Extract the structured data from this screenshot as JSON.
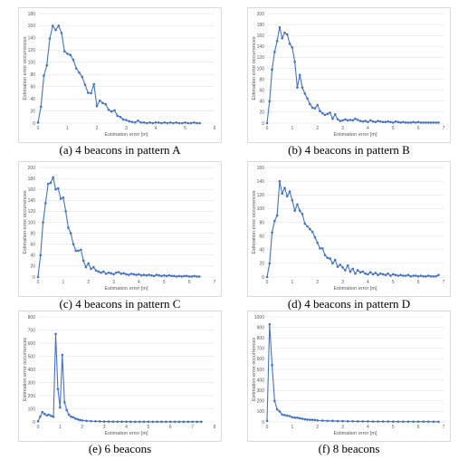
{
  "chart_data": [
    {
      "id": "a",
      "type": "line",
      "caption": "(a) 4 beacons in pattern A",
      "xlabel": "Estimation error [m]",
      "ylabel": "Estimation error occurrences",
      "xlim": [
        0,
        6
      ],
      "ylim": [
        0,
        180
      ],
      "xstep": 1,
      "ystep": 20,
      "series": [
        {
          "x": [
            0,
            0.1,
            0.2,
            0.3,
            0.4,
            0.5,
            0.6,
            0.7,
            0.8,
            0.9,
            1,
            1.1,
            1.2,
            1.3,
            1.4,
            1.5,
            1.6,
            1.7,
            1.8,
            1.9,
            2,
            2.1,
            2.2,
            2.3,
            2.4,
            2.5,
            2.6,
            2.7,
            2.8,
            2.9,
            3,
            3.1,
            3.2,
            3.3,
            3.4,
            3.5,
            3.6,
            3.7,
            3.8,
            3.9,
            4,
            4.1,
            4.2,
            4.3,
            4.4,
            4.5,
            4.6,
            4.7,
            4.8,
            4.9,
            5,
            5.1,
            5.2,
            5.3,
            5.4,
            5.5
          ],
          "y": [
            1,
            27,
            78,
            95,
            139,
            160,
            153,
            160,
            148,
            118,
            114,
            112,
            104,
            90,
            83,
            76,
            63,
            50,
            49,
            64,
            28,
            37,
            33,
            31,
            22,
            19,
            21,
            12,
            10,
            6,
            5,
            3,
            2,
            1,
            4,
            1,
            1,
            0,
            1,
            0,
            1,
            1,
            0,
            1,
            0,
            1,
            0,
            1,
            0,
            0,
            1,
            0,
            0,
            1,
            0,
            0
          ]
        }
      ]
    },
    {
      "id": "b",
      "type": "line",
      "caption": "(b) 4 beacons in pattern B",
      "xlabel": "Estimation error [m]",
      "ylabel": "Estimation error occurrences",
      "xlim": [
        0,
        7
      ],
      "ylim": [
        0,
        200
      ],
      "xstep": 1,
      "ystep": 20,
      "series": [
        {
          "x": [
            0,
            0.1,
            0.2,
            0.3,
            0.4,
            0.5,
            0.6,
            0.7,
            0.8,
            0.9,
            1,
            1.1,
            1.2,
            1.3,
            1.4,
            1.5,
            1.6,
            1.7,
            1.8,
            1.9,
            2,
            2.1,
            2.2,
            2.3,
            2.4,
            2.5,
            2.6,
            2.7,
            2.8,
            2.9,
            3,
            3.1,
            3.2,
            3.3,
            3.4,
            3.5,
            3.6,
            3.7,
            3.8,
            3.9,
            4,
            4.1,
            4.2,
            4.3,
            4.4,
            4.5,
            4.6,
            4.7,
            4.8,
            4.9,
            5,
            5.1,
            5.2,
            5.3,
            5.4,
            5.5,
            5.6,
            5.7,
            5.8,
            5.9,
            6,
            6.1,
            6.2,
            6.3,
            6.4,
            6.5,
            6.6,
            6.7,
            6.8
          ],
          "y": [
            0,
            40,
            98,
            130,
            150,
            175,
            155,
            165,
            162,
            145,
            138,
            112,
            65,
            88,
            65,
            54,
            45,
            35,
            28,
            27,
            33,
            22,
            18,
            15,
            17,
            19,
            8,
            16,
            7,
            4,
            5,
            7,
            5,
            6,
            5,
            8,
            6,
            4,
            3,
            4,
            2,
            5,
            3,
            2,
            4,
            3,
            2,
            2,
            3,
            2,
            1,
            3,
            2,
            1,
            2,
            1,
            1,
            1,
            2,
            1,
            2,
            1,
            1,
            1,
            1,
            1,
            1,
            1,
            1
          ]
        }
      ]
    },
    {
      "id": "c",
      "type": "line",
      "caption": "(c) 4 beacons in pattern C",
      "xlabel": "Estimation error [m]",
      "ylabel": "Estimation error occurrences",
      "xlim": [
        0,
        7
      ],
      "ylim": [
        0,
        200
      ],
      "xstep": 1,
      "ystep": 20,
      "series": [
        {
          "x": [
            0,
            0.1,
            0.2,
            0.3,
            0.4,
            0.5,
            0.6,
            0.7,
            0.8,
            0.9,
            1,
            1.1,
            1.2,
            1.3,
            1.4,
            1.5,
            1.6,
            1.7,
            1.8,
            1.9,
            2,
            2.1,
            2.2,
            2.3,
            2.4,
            2.5,
            2.6,
            2.7,
            2.8,
            2.9,
            3,
            3.1,
            3.2,
            3.3,
            3.4,
            3.5,
            3.6,
            3.7,
            3.8,
            3.9,
            4,
            4.1,
            4.2,
            4.3,
            4.4,
            4.5,
            4.6,
            4.7,
            4.8,
            4.9,
            5,
            5.1,
            5.2,
            5.3,
            5.4,
            5.5,
            5.6,
            5.7,
            5.8,
            5.9,
            6,
            6.1,
            6.2,
            6.3,
            6.4
          ],
          "y": [
            0,
            40,
            100,
            135,
            170,
            172,
            182,
            160,
            162,
            143,
            145,
            120,
            90,
            80,
            60,
            48,
            48,
            50,
            30,
            18,
            25,
            15,
            18,
            12,
            10,
            8,
            10,
            6,
            8,
            7,
            5,
            8,
            9,
            6,
            7,
            5,
            4,
            6,
            5,
            4,
            5,
            3,
            4,
            3,
            4,
            3,
            2,
            4,
            3,
            2,
            3,
            2,
            3,
            2,
            2,
            1,
            2,
            1,
            2,
            2,
            1,
            1,
            2,
            1,
            1
          ]
        }
      ]
    },
    {
      "id": "d",
      "type": "line",
      "caption": "(d) 4 beacons in pattern D",
      "xlabel": "Estimation error [m]",
      "ylabel": "Estimation error occurrences",
      "xlim": [
        0,
        7
      ],
      "ylim": [
        0,
        160
      ],
      "xstep": 1,
      "ystep": 20,
      "series": [
        {
          "x": [
            0,
            0.1,
            0.2,
            0.3,
            0.4,
            0.5,
            0.6,
            0.7,
            0.8,
            0.9,
            1,
            1.1,
            1.2,
            1.3,
            1.4,
            1.5,
            1.6,
            1.7,
            1.8,
            1.9,
            2,
            2.1,
            2.2,
            2.3,
            2.4,
            2.5,
            2.6,
            2.7,
            2.8,
            2.9,
            3,
            3.1,
            3.2,
            3.3,
            3.4,
            3.5,
            3.6,
            3.7,
            3.8,
            3.9,
            4,
            4.1,
            4.2,
            4.3,
            4.4,
            4.5,
            4.6,
            4.7,
            4.8,
            4.9,
            5,
            5.1,
            5.2,
            5.3,
            5.4,
            5.5,
            5.6,
            5.7,
            5.8,
            5.9,
            6,
            6.1,
            6.2,
            6.3,
            6.4,
            6.5,
            6.6,
            6.7,
            6.8
          ],
          "y": [
            0,
            20,
            65,
            82,
            90,
            140,
            122,
            130,
            118,
            125,
            112,
            97,
            106,
            97,
            92,
            78,
            74,
            70,
            66,
            58,
            50,
            42,
            42,
            32,
            28,
            27,
            20,
            25,
            15,
            18,
            14,
            10,
            17,
            8,
            12,
            5,
            10,
            7,
            8,
            5,
            4,
            7,
            4,
            6,
            3,
            5,
            4,
            3,
            5,
            2,
            4,
            3,
            2,
            3,
            2,
            2,
            3,
            1,
            2,
            2,
            1,
            2,
            1,
            1,
            2,
            1,
            1,
            1,
            3
          ]
        }
      ]
    },
    {
      "id": "e",
      "type": "line",
      "caption": "(e) 6 beacons",
      "xlabel": "Estimation error [m]",
      "ylabel": "Estimation error occurrences",
      "xlim": [
        0,
        8
      ],
      "ylim": [
        0,
        800
      ],
      "xstep": 1,
      "ystep": 100,
      "series": [
        {
          "x": [
            0,
            0.1,
            0.2,
            0.3,
            0.4,
            0.5,
            0.6,
            0.7,
            0.8,
            0.9,
            1,
            1.1,
            1.2,
            1.3,
            1.4,
            1.5,
            1.6,
            1.7,
            1.8,
            1.9,
            2,
            2.2,
            2.4,
            2.6,
            2.8,
            3,
            3.2,
            3.4,
            3.6,
            3.8,
            4,
            4.2,
            4.4,
            4.6,
            4.8,
            5,
            5.2,
            5.4,
            5.6,
            5.8,
            6,
            6.2,
            6.4,
            6.6,
            6.8,
            7,
            7.2,
            7.4
          ],
          "y": [
            5,
            40,
            75,
            60,
            50,
            55,
            45,
            40,
            670,
            250,
            110,
            510,
            150,
            90,
            55,
            40,
            35,
            25,
            20,
            15,
            12,
            8,
            6,
            5,
            4,
            3,
            3,
            2,
            2,
            2,
            2,
            1,
            1,
            1,
            1,
            1,
            1,
            1,
            1,
            1,
            1,
            1,
            1,
            1,
            1,
            1,
            1,
            1
          ]
        }
      ]
    },
    {
      "id": "f",
      "type": "line",
      "caption": "(f) 8 beacons",
      "xlabel": "Estimation error [m]",
      "ylabel": "Estimation error occurrences",
      "xlim": [
        0,
        7
      ],
      "ylim": [
        0,
        1000
      ],
      "xstep": 1,
      "ystep": 100,
      "series": [
        {
          "x": [
            0,
            0.1,
            0.2,
            0.3,
            0.4,
            0.5,
            0.6,
            0.7,
            0.8,
            0.9,
            1,
            1.1,
            1.2,
            1.3,
            1.4,
            1.5,
            1.6,
            1.7,
            1.8,
            1.9,
            2,
            2.2,
            2.4,
            2.6,
            2.8,
            3,
            3.2,
            3.4,
            3.6,
            3.8,
            4,
            4.2,
            4.4,
            4.6,
            4.8,
            5,
            5.2,
            5.4,
            5.6,
            5.8,
            6,
            6.2,
            6.4,
            6.6,
            6.8
          ],
          "y": [
            10,
            930,
            540,
            200,
            120,
            100,
            70,
            65,
            60,
            55,
            45,
            40,
            40,
            35,
            30,
            25,
            22,
            20,
            20,
            18,
            15,
            12,
            10,
            10,
            8,
            8,
            6,
            6,
            5,
            5,
            5,
            4,
            4,
            4,
            4,
            3,
            3,
            3,
            3,
            3,
            3,
            3,
            3,
            2,
            2
          ]
        }
      ]
    }
  ]
}
